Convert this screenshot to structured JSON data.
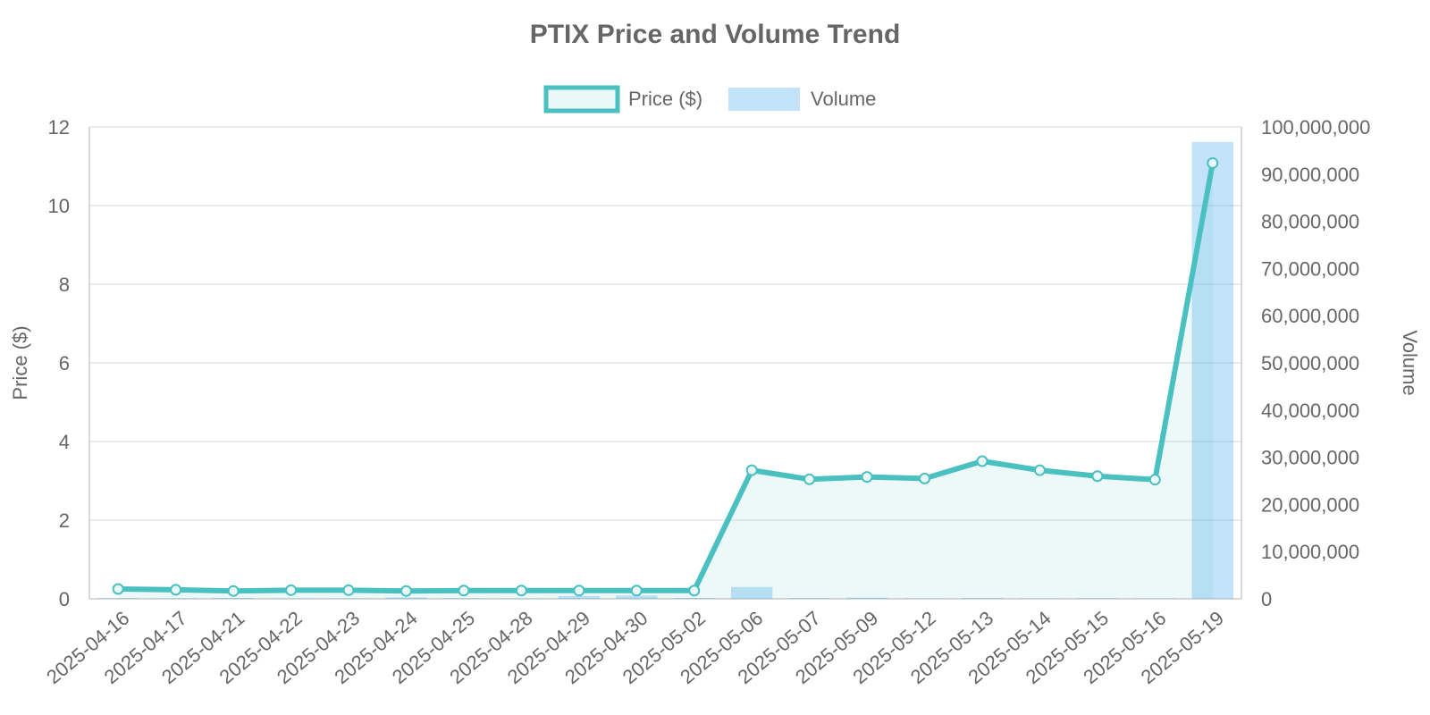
{
  "chart_data": {
    "type": "bar-line",
    "title": "PTIX Price and Volume Trend",
    "categories": [
      "2025-04-16",
      "2025-04-17",
      "2025-04-21",
      "2025-04-22",
      "2025-04-23",
      "2025-04-24",
      "2025-04-25",
      "2025-04-28",
      "2025-04-29",
      "2025-04-30",
      "2025-05-02",
      "2025-05-06",
      "2025-05-07",
      "2025-05-09",
      "2025-05-12",
      "2025-05-13",
      "2025-05-14",
      "2025-05-15",
      "2025-05-16",
      "2025-05-19"
    ],
    "series": [
      {
        "name": "Price ($)",
        "type": "line",
        "axis": "left",
        "values": [
          0.25,
          0.23,
          0.2,
          0.22,
          0.22,
          0.2,
          0.21,
          0.21,
          0.21,
          0.21,
          0.21,
          3.27,
          3.04,
          3.1,
          3.06,
          3.5,
          3.27,
          3.12,
          3.03,
          11.08
        ]
      },
      {
        "name": "Volume",
        "type": "bar",
        "axis": "right",
        "values": [
          150000,
          100000,
          200000,
          80000,
          90000,
          300000,
          120000,
          100000,
          600000,
          700000,
          200000,
          2500000,
          150000,
          250000,
          100000,
          200000,
          100000,
          120000,
          100000,
          96800000
        ]
      }
    ],
    "ylabel": "Price ($)",
    "y2label": "Volume",
    "ylim": [
      0,
      12
    ],
    "y2lim": [
      0,
      100000000
    ],
    "yticks": [
      "0",
      "2",
      "4",
      "6",
      "8",
      "10",
      "12"
    ],
    "y2ticks": [
      "0",
      "10,000,000",
      "20,000,000",
      "30,000,000",
      "40,000,000",
      "50,000,000",
      "60,000,000",
      "70,000,000",
      "80,000,000",
      "90,000,000",
      "100,000,000"
    ],
    "grid": true,
    "legend_position": "top-center",
    "colors": {
      "price_line": "#4bc0c0",
      "price_fill": "#4bc0c0",
      "volume_bar": "#36a2eb"
    }
  }
}
